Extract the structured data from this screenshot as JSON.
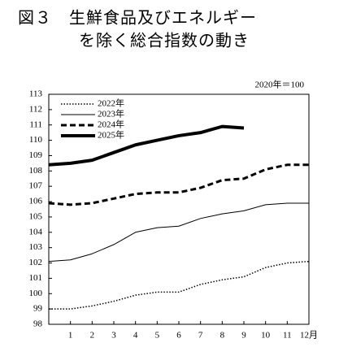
{
  "chart_data": {
    "type": "line",
    "title": [
      "図３　生鮮食品及びエネルギー",
      "を除く総合指数の動き"
    ],
    "annotation": "2020年＝100",
    "x": [
      0,
      1,
      2,
      3,
      4,
      5,
      6,
      7,
      8,
      9,
      10,
      11,
      12
    ],
    "xlim": [
      0,
      12
    ],
    "xticks": [
      1,
      2,
      3,
      4,
      5,
      6,
      7,
      8,
      9,
      10,
      11,
      {
        "value": 12,
        "label": "12月"
      }
    ],
    "ylim": [
      98,
      113
    ],
    "yticks": [
      98,
      99,
      100,
      101,
      102,
      103,
      104,
      105,
      106,
      107,
      108,
      109,
      110,
      111,
      112,
      113
    ],
    "legend": "upper left",
    "series": [
      {
        "name": "2022年",
        "color": "#000000",
        "line_style": "dotted",
        "values": [
          99.0,
          99.0,
          99.2,
          99.5,
          99.9,
          100.1,
          100.1,
          100.6,
          100.9,
          101.1,
          101.7,
          102.0,
          102.1
        ]
      },
      {
        "name": "2023年",
        "color": "#000000",
        "line_style": "thin",
        "values": [
          102.1,
          102.2,
          102.6,
          103.2,
          104.0,
          104.3,
          104.4,
          104.9,
          105.2,
          105.4,
          105.8,
          105.9,
          105.9
        ]
      },
      {
        "name": "2024年",
        "color": "#000000",
        "line_style": "dashed",
        "values": [
          105.9,
          105.8,
          105.9,
          106.2,
          106.5,
          106.6,
          106.6,
          106.9,
          107.4,
          107.5,
          108.1,
          108.4,
          108.4
        ]
      },
      {
        "name": "2025年",
        "color": "#000000",
        "line_style": "thick",
        "values": [
          108.4,
          108.5,
          108.7,
          109.2,
          109.7,
          110.0,
          110.3,
          110.5,
          110.9,
          110.8,
          null,
          null,
          null
        ]
      }
    ]
  }
}
